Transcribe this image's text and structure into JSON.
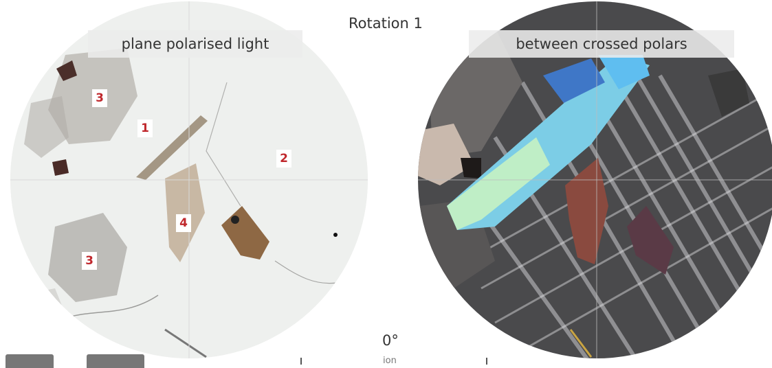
{
  "title": "Rotation 1",
  "views": {
    "ppl_label": "plane polarised light",
    "xpl_label": "between crossed polars"
  },
  "mineral_labels": [
    "1",
    "2",
    "3",
    "3",
    "4"
  ],
  "rotation_angle": "0°",
  "bottom_partial_text": "ion"
}
